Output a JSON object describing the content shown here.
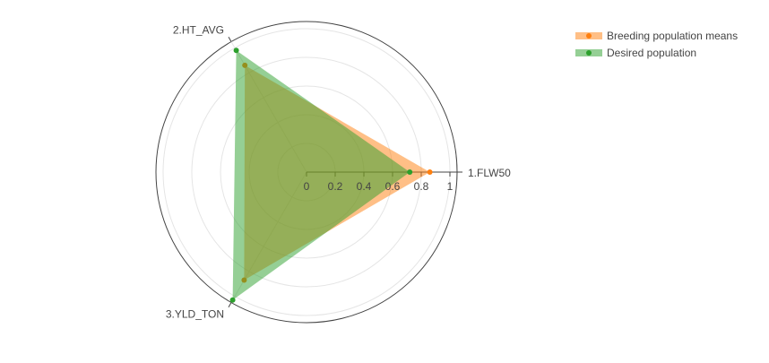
{
  "chart_data": {
    "type": "radar",
    "axes": [
      "1.FLW50",
      "2.HT_AVG",
      "3.YLD_TON"
    ],
    "radial_range": [
      0,
      1.05
    ],
    "radial_ticks": [
      0,
      0.2,
      0.4,
      0.6,
      0.8,
      1
    ],
    "radial_tick_labels": [
      "0",
      "0.2",
      "0.4",
      "0.6",
      "0.8",
      "1"
    ],
    "grid": true,
    "legend_position": "top-right",
    "series": [
      {
        "name": "Breeding population means",
        "values": [
          0.86,
          0.86,
          0.87
        ],
        "color": "#ff7f0e",
        "fill_opacity": 0.5
      },
      {
        "name": "Desired population",
        "values": [
          0.72,
          0.98,
          1.03
        ],
        "color": "#2ca02c",
        "fill_opacity": 0.5
      }
    ]
  }
}
